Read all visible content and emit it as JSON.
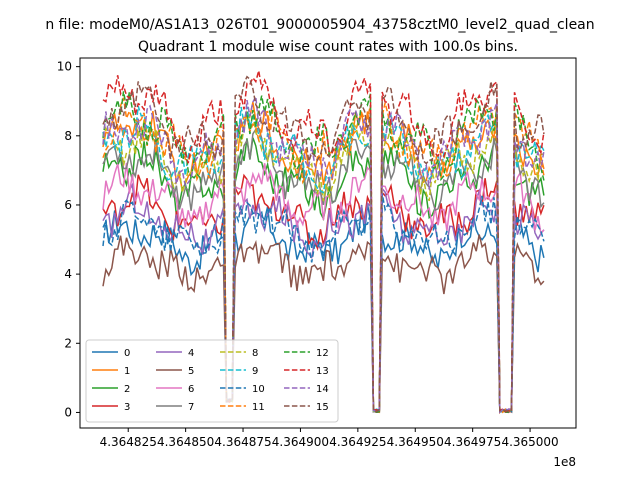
{
  "chart_data": {
    "type": "line",
    "suptitle": "n file: modeM0/AS1A13_026T01_9000005904_43758cztM0_level2_quad_clean",
    "title": "Quadrant 1 module wise count rates with 100.0s bins.",
    "xlabel": "",
    "ylabel": "",
    "x_offset_label": "1e8",
    "xlim": [
      4.364804,
      4.36502
    ],
    "ylim": [
      -0.45,
      10.25
    ],
    "x_ticks": [
      4.364825,
      4.36485,
      4.364875,
      4.3649,
      4.364925,
      4.36495,
      4.364975,
      4.365
    ],
    "x_tick_labels": [
      "4.364825",
      "4.364850",
      "4.364875",
      "4.364900",
      "4.364925",
      "4.364950",
      "4.364975",
      "4.365000"
    ],
    "y_ticks": [
      0,
      2,
      4,
      6,
      8,
      10
    ],
    "y_tick_labels": [
      "0",
      "2",
      "4",
      "6",
      "8",
      "10"
    ],
    "x_start": 4.364814,
    "x_end": 4.365006,
    "dips": [
      {
        "start": 4.364867,
        "end": 4.3648705,
        "floor": 0.3
      },
      {
        "start": 4.364931,
        "end": 4.3649355,
        "floor": 0.0
      },
      {
        "start": 4.3649865,
        "end": 4.3649925,
        "floor": 0.0
      }
    ],
    "legend_position": "lower-left",
    "series": [
      {
        "name": "0",
        "color": "#1f77b4",
        "dash": "solid",
        "level": 5.0
      },
      {
        "name": "1",
        "color": "#ff7f0e",
        "dash": "solid",
        "level": 7.7
      },
      {
        "name": "2",
        "color": "#2ca02c",
        "dash": "solid",
        "level": 6.8
      },
      {
        "name": "3",
        "color": "#d62728",
        "dash": "solid",
        "level": 5.8
      },
      {
        "name": "4",
        "color": "#9467bd",
        "dash": "solid",
        "level": 5.5
      },
      {
        "name": "5",
        "color": "#8c564b",
        "dash": "solid",
        "level": 4.3
      },
      {
        "name": "6",
        "color": "#e377c2",
        "dash": "solid",
        "level": 6.2
      },
      {
        "name": "7",
        "color": "#7f7f7f",
        "dash": "solid",
        "level": 7.0
      },
      {
        "name": "8",
        "color": "#bcbd22",
        "dash": "dashed",
        "level": 7.4
      },
      {
        "name": "9",
        "color": "#17becf",
        "dash": "dashed",
        "level": 7.6
      },
      {
        "name": "10",
        "color": "#1f77b4",
        "dash": "dashed",
        "level": 5.3
      },
      {
        "name": "11",
        "color": "#ff7f0e",
        "dash": "dashed",
        "level": 7.9
      },
      {
        "name": "12",
        "color": "#2ca02c",
        "dash": "dashed",
        "level": 8.1
      },
      {
        "name": "13",
        "color": "#d62728",
        "dash": "dashed",
        "level": 8.6
      },
      {
        "name": "14",
        "color": "#9467bd",
        "dash": "dashed",
        "level": 7.8
      },
      {
        "name": "15",
        "color": "#8c564b",
        "dash": "dashed",
        "level": 8.3
      }
    ]
  }
}
